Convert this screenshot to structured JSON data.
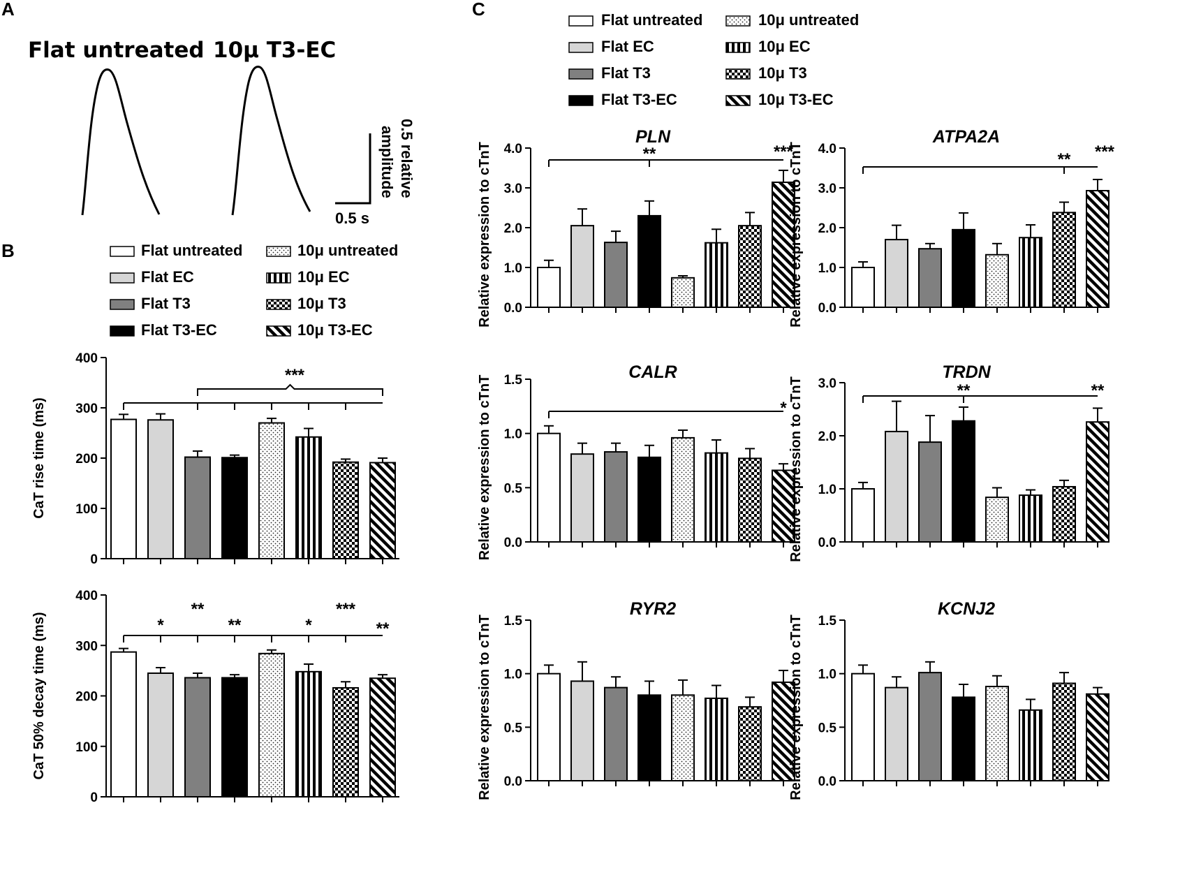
{
  "panel_labels": {
    "a": "A",
    "b": "B",
    "c": "C"
  },
  "traces": {
    "left_title": "Flat untreated",
    "right_title": "10μ T3-EC",
    "scale_time": "0.5 s",
    "scale_amp_line1": "0.5 relative",
    "scale_amp_line2": "amplitude"
  },
  "legend_labels": [
    "Flat untreated",
    "Flat EC",
    "Flat T3",
    "Flat T3-EC",
    "10μ untreated",
    "10μ EC",
    "10μ T3",
    "10μ T3-EC"
  ],
  "chart_data": [
    {
      "id": "rise",
      "type": "bar",
      "title": "",
      "ylabel": "CaT rise time (ms)",
      "ylim": [
        0,
        400
      ],
      "yticks": [
        0,
        100,
        200,
        300,
        400
      ],
      "tick_labels": [
        "0",
        "100",
        "200",
        "300",
        "400"
      ],
      "categories": [
        "Flat untreated",
        "Flat EC",
        "Flat T3",
        "Flat T3-EC",
        "10μ untreated",
        "10μ EC",
        "10μ T3",
        "10μ T3-EC"
      ],
      "values": [
        277,
        276,
        202,
        201,
        270,
        242,
        192,
        191
      ],
      "errors": [
        10,
        12,
        12,
        5,
        9,
        17,
        6,
        9
      ],
      "annotations": [
        "***"
      ]
    },
    {
      "id": "decay",
      "type": "bar",
      "title": "",
      "ylabel": "CaT 50% decay time (ms)",
      "ylim": [
        0,
        400
      ],
      "yticks": [
        0,
        100,
        200,
        300,
        400
      ],
      "tick_labels": [
        "0",
        "100",
        "200",
        "300",
        "400"
      ],
      "categories": [
        "Flat untreated",
        "Flat EC",
        "Flat T3",
        "Flat T3-EC",
        "10μ untreated",
        "10μ EC",
        "10μ T3",
        "10μ T3-EC"
      ],
      "values": [
        287,
        245,
        236,
        236,
        284,
        248,
        216,
        235
      ],
      "errors": [
        7,
        11,
        9,
        6,
        7,
        15,
        12,
        7
      ],
      "annotations": [
        "*",
        "**",
        "**",
        "*",
        "***",
        "**"
      ]
    },
    {
      "id": "pln",
      "type": "bar",
      "title": "PLN",
      "ylabel": "Relative expression to cTnT",
      "ylim": [
        0,
        4
      ],
      "yticks": [
        0,
        1,
        2,
        3,
        4
      ],
      "tick_labels": [
        "0.0",
        "1.0",
        "2.0",
        "3.0",
        "4.0"
      ],
      "categories": [
        "Flat untreated",
        "Flat EC",
        "Flat T3",
        "Flat T3-EC",
        "10μ untreated",
        "10μ EC",
        "10μ T3",
        "10μ T3-EC"
      ],
      "values": [
        1.0,
        2.05,
        1.63,
        2.3,
        0.74,
        1.62,
        2.05,
        3.14
      ],
      "errors": [
        0.18,
        0.42,
        0.28,
        0.37,
        0.05,
        0.34,
        0.33,
        0.3
      ],
      "annotations": [
        "**",
        "***"
      ]
    },
    {
      "id": "atpa2a",
      "type": "bar",
      "title": "ATPA2A",
      "ylabel": "Relative expression to cTnT",
      "ylim": [
        0,
        4
      ],
      "yticks": [
        0,
        1,
        2,
        3,
        4
      ],
      "tick_labels": [
        "0.0",
        "1.0",
        "2.0",
        "3.0",
        "4.0"
      ],
      "categories": [
        "Flat untreated",
        "Flat EC",
        "Flat T3",
        "Flat T3-EC",
        "10μ untreated",
        "10μ EC",
        "10μ T3",
        "10μ T3-EC"
      ],
      "values": [
        1.0,
        1.7,
        1.47,
        1.95,
        1.32,
        1.75,
        2.38,
        2.93
      ],
      "errors": [
        0.14,
        0.36,
        0.13,
        0.42,
        0.28,
        0.32,
        0.26,
        0.28
      ],
      "annotations": [
        "**",
        "***"
      ]
    },
    {
      "id": "calr",
      "type": "bar",
      "title": "CALR",
      "ylabel": "Relative expression to cTnT",
      "ylim": [
        0,
        1.5
      ],
      "yticks": [
        0,
        0.5,
        1,
        1.5
      ],
      "tick_labels": [
        "0.0",
        "0.5",
        "1.0",
        "1.5"
      ],
      "categories": [
        "Flat untreated",
        "Flat EC",
        "Flat T3",
        "Flat T3-EC",
        "10μ untreated",
        "10μ EC",
        "10μ T3",
        "10μ T3-EC"
      ],
      "values": [
        1.0,
        0.81,
        0.83,
        0.78,
        0.96,
        0.82,
        0.77,
        0.66
      ],
      "errors": [
        0.07,
        0.1,
        0.08,
        0.11,
        0.07,
        0.12,
        0.09,
        0.06
      ],
      "annotations": [
        "*"
      ]
    },
    {
      "id": "trdn",
      "type": "bar",
      "title": "TRDN",
      "ylabel": "Relative expression to cTnT",
      "ylim": [
        0,
        3
      ],
      "yticks": [
        0,
        1,
        2,
        3
      ],
      "tick_labels": [
        "0.0",
        "1.0",
        "2.0",
        "3.0"
      ],
      "categories": [
        "Flat untreated",
        "Flat EC",
        "Flat T3",
        "Flat T3-EC",
        "10μ untreated",
        "10μ EC",
        "10μ T3",
        "10μ T3-EC"
      ],
      "values": [
        1.0,
        2.08,
        1.88,
        2.28,
        0.84,
        0.88,
        1.04,
        2.26
      ],
      "errors": [
        0.12,
        0.57,
        0.5,
        0.26,
        0.18,
        0.1,
        0.12,
        0.26
      ],
      "annotations": [
        "**",
        "**"
      ]
    },
    {
      "id": "ryr2",
      "type": "bar",
      "title": "RYR2",
      "ylabel": "Relative expression to cTnT",
      "ylim": [
        0,
        1.5
      ],
      "yticks": [
        0,
        0.5,
        1,
        1.5
      ],
      "tick_labels": [
        "0.0",
        "0.5",
        "1.0",
        "1.5"
      ],
      "categories": [
        "Flat untreated",
        "Flat EC",
        "Flat T3",
        "Flat T3-EC",
        "10μ untreated",
        "10μ EC",
        "10μ T3",
        "10μ T3-EC"
      ],
      "values": [
        1.0,
        0.93,
        0.87,
        0.8,
        0.8,
        0.77,
        0.69,
        0.92
      ],
      "errors": [
        0.08,
        0.18,
        0.1,
        0.13,
        0.14,
        0.12,
        0.09,
        0.11
      ],
      "annotations": []
    },
    {
      "id": "kcnj2",
      "type": "bar",
      "title": "KCNJ2",
      "ylabel": "Relative expression to cTnT",
      "ylim": [
        0,
        1.5
      ],
      "yticks": [
        0,
        0.5,
        1,
        1.5
      ],
      "tick_labels": [
        "0.0",
        "0.5",
        "1.0",
        "1.5"
      ],
      "categories": [
        "Flat untreated",
        "Flat EC",
        "Flat T3",
        "Flat T3-EC",
        "10μ untreated",
        "10μ EC",
        "10μ T3",
        "10μ T3-EC"
      ],
      "values": [
        1.0,
        0.87,
        1.01,
        0.78,
        0.88,
        0.66,
        0.91,
        0.81
      ],
      "errors": [
        0.08,
        0.1,
        0.1,
        0.12,
        0.1,
        0.1,
        0.1,
        0.06
      ],
      "annotations": []
    }
  ]
}
